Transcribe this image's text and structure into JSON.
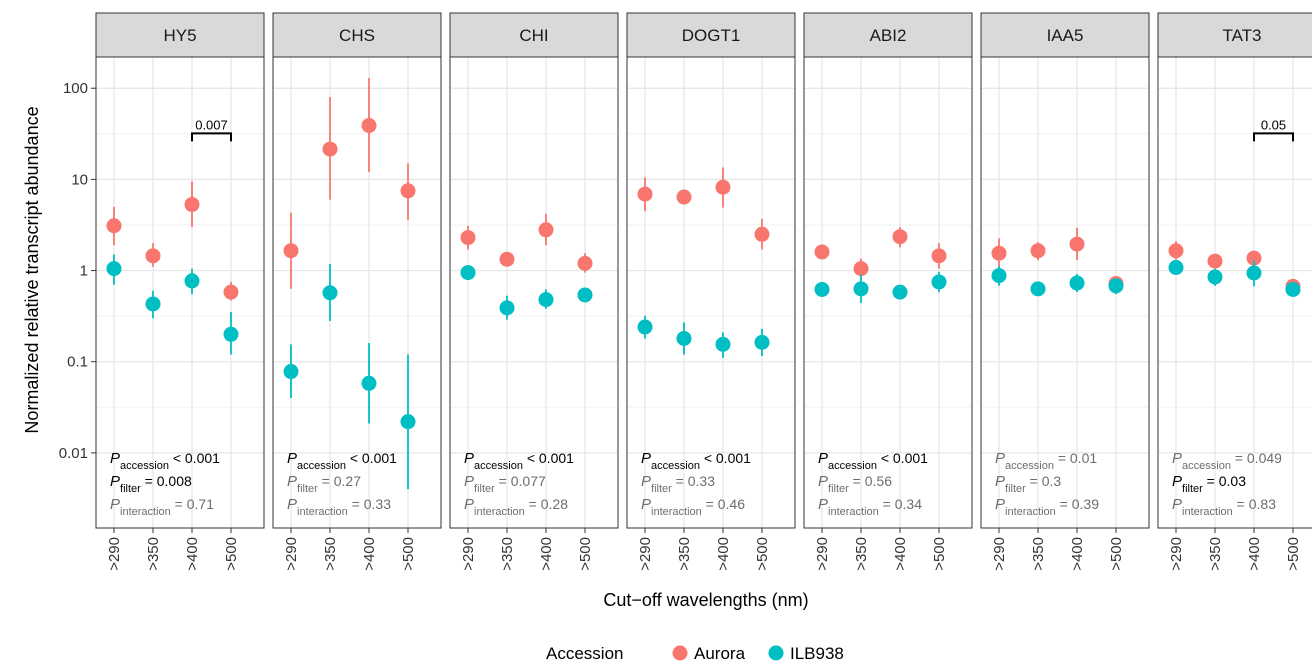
{
  "chart_data": {
    "type": "scatter",
    "layout": "faceted",
    "x_categories": [
      ">290",
      ">350",
      ">400",
      ">500"
    ],
    "xlabel": "Cut−off wavelengths (nm)",
    "ylabel": "Normalized relative transcript abundance",
    "y_scale": "log10",
    "ylim": [
      0.0015,
      220
    ],
    "y_ticks": [
      0.01,
      0.1,
      1,
      10,
      100
    ],
    "y_tick_labels": [
      "0.01",
      "0.1",
      "1",
      "10",
      "100"
    ],
    "grid": true,
    "legend": {
      "title": "Accession",
      "position": "bottom",
      "entries": [
        {
          "name": "Aurora",
          "color": "#F8766D"
        },
        {
          "name": "ILB938",
          "color": "#00BFC4"
        }
      ]
    },
    "panels": [
      {
        "title": "HY5",
        "series": [
          {
            "name": "Aurora",
            "values": [
              3.1,
              1.45,
              5.3,
              0.58
            ],
            "lower": [
              1.9,
              1.1,
              3.0,
              0.47
            ],
            "upper": [
              5.0,
              2.0,
              9.5,
              0.75
            ]
          },
          {
            "name": "ILB938",
            "values": [
              1.05,
              0.43,
              0.77,
              0.2
            ],
            "lower": [
              0.7,
              0.3,
              0.55,
              0.12
            ],
            "upper": [
              1.5,
              0.6,
              1.05,
              0.35
            ]
          }
        ],
        "bracket": {
          "from": ">400",
          "to": ">500",
          "label": "0.007",
          "y": 32
        },
        "stats": [
          {
            "sub": "accession",
            "text": " < 0.001",
            "style": "bold"
          },
          {
            "sub": "filter",
            "text": " = 0.008",
            "style": "bold"
          },
          {
            "sub": "interaction",
            "text": " = 0.71",
            "style": "grey"
          }
        ]
      },
      {
        "title": "CHS",
        "series": [
          {
            "name": "Aurora",
            "values": [
              1.65,
              21.5,
              39,
              7.5
            ],
            "lower": [
              0.63,
              6.0,
              12,
              3.6
            ],
            "upper": [
              4.3,
              80,
              130,
              15
            ]
          },
          {
            "name": "ILB938",
            "values": [
              0.078,
              0.57,
              0.058,
              0.022
            ],
            "lower": [
              0.04,
              0.28,
              0.021,
              0.004
            ],
            "upper": [
              0.155,
              1.18,
              0.16,
              0.12
            ]
          }
        ],
        "stats": [
          {
            "sub": "accession",
            "text": " < 0.001",
            "style": "bold"
          },
          {
            "sub": "filter",
            "text": " = 0.27",
            "style": "grey"
          },
          {
            "sub": "interaction",
            "text": " = 0.33",
            "style": "grey"
          }
        ]
      },
      {
        "title": "CHI",
        "series": [
          {
            "name": "Aurora",
            "values": [
              2.3,
              1.33,
              2.8,
              1.2
            ],
            "lower": [
              1.7,
              1.15,
              1.9,
              0.95
            ],
            "upper": [
              3.1,
              1.55,
              4.2,
              1.55
            ]
          },
          {
            "name": "ILB938",
            "values": [
              0.95,
              0.39,
              0.48,
              0.54
            ],
            "lower": [
              0.82,
              0.29,
              0.38,
              0.47
            ],
            "upper": [
              1.1,
              0.53,
              0.62,
              0.62
            ]
          }
        ],
        "stats": [
          {
            "sub": "accession",
            "text": " < 0.001",
            "style": "bold"
          },
          {
            "sub": "filter",
            "text": " = 0.077",
            "style": "grey"
          },
          {
            "sub": "interaction",
            "text": " = 0.28",
            "style": "grey"
          }
        ]
      },
      {
        "title": "DOGT1",
        "series": [
          {
            "name": "Aurora",
            "values": [
              6.9,
              6.4,
              8.2,
              2.5
            ],
            "lower": [
              4.5,
              5.5,
              4.9,
              1.7
            ],
            "upper": [
              10.5,
              7.5,
              13.5,
              3.7
            ]
          },
          {
            "name": "ILB938",
            "values": [
              0.24,
              0.18,
              0.155,
              0.163
            ],
            "lower": [
              0.18,
              0.12,
              0.11,
              0.115
            ],
            "upper": [
              0.32,
              0.27,
              0.21,
              0.23
            ]
          }
        ],
        "stats": [
          {
            "sub": "accession",
            "text": " < 0.001",
            "style": "bold"
          },
          {
            "sub": "filter",
            "text": " = 0.33",
            "style": "grey"
          },
          {
            "sub": "interaction",
            "text": " = 0.46",
            "style": "grey"
          }
        ]
      },
      {
        "title": "ABI2",
        "series": [
          {
            "name": "Aurora",
            "values": [
              1.6,
              1.05,
              2.35,
              1.45
            ],
            "lower": [
              1.35,
              0.8,
              1.8,
              1.05
            ],
            "upper": [
              1.9,
              1.35,
              3.0,
              2.0
            ]
          },
          {
            "name": "ILB938",
            "values": [
              0.62,
              0.63,
              0.58,
              0.75
            ],
            "lower": [
              0.52,
              0.44,
              0.5,
              0.58
            ],
            "upper": [
              0.72,
              0.9,
              0.66,
              0.97
            ]
          }
        ],
        "stats": [
          {
            "sub": "accession",
            "text": " < 0.001",
            "style": "bold"
          },
          {
            "sub": "filter",
            "text": " = 0.56",
            "style": "grey"
          },
          {
            "sub": "interaction",
            "text": " = 0.34",
            "style": "grey"
          }
        ]
      },
      {
        "title": "IAA5",
        "series": [
          {
            "name": "Aurora",
            "values": [
              1.55,
              1.65,
              1.95,
              0.72
            ],
            "lower": [
              1.1,
              1.3,
              1.3,
              0.6
            ],
            "upper": [
              2.25,
              2.05,
              2.95,
              0.85
            ]
          },
          {
            "name": "ILB938",
            "values": [
              0.88,
              0.63,
              0.73,
              0.68
            ],
            "lower": [
              0.68,
              0.56,
              0.58,
              0.55
            ],
            "upper": [
              1.12,
              0.71,
              0.92,
              0.83
            ]
          }
        ],
        "stats": [
          {
            "sub": "accession",
            "text": " = 0.01",
            "style": "grey"
          },
          {
            "sub": "filter",
            "text": " = 0.3",
            "style": "grey"
          },
          {
            "sub": "interaction",
            "text": " = 0.39",
            "style": "grey"
          }
        ]
      },
      {
        "title": "TAT3",
        "series": [
          {
            "name": "Aurora",
            "values": [
              1.65,
              1.27,
              1.37,
              0.67
            ],
            "lower": [
              1.3,
              1.1,
              1.15,
              0.58
            ],
            "upper": [
              2.1,
              1.47,
              1.62,
              0.76
            ]
          },
          {
            "name": "ILB938",
            "values": [
              1.08,
              0.85,
              0.94,
              0.62
            ],
            "lower": [
              0.92,
              0.68,
              0.67,
              0.55
            ],
            "upper": [
              1.27,
              1.05,
              1.3,
              0.7
            ]
          }
        ],
        "bracket": {
          "from": ">400",
          "to": ">500",
          "label": "0.05",
          "y": 32
        },
        "stats": [
          {
            "sub": "accession",
            "text": " = 0.049",
            "style": "grey"
          },
          {
            "sub": "filter",
            "text": " = 0.03",
            "style": "bold"
          },
          {
            "sub": "interaction",
            "text": " = 0.83",
            "style": "grey"
          }
        ]
      }
    ]
  }
}
